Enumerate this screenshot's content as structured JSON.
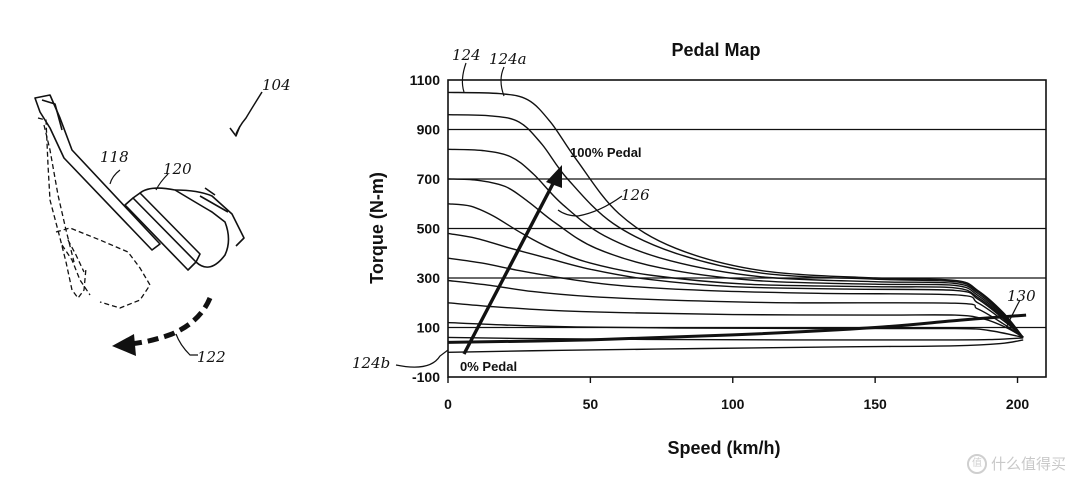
{
  "chart_data": {
    "type": "line",
    "title": "Pedal Map",
    "xlabel": "Speed (km/h)",
    "ylabel": "Torque (N-m)",
    "xlim": [
      0,
      210
    ],
    "ylim": [
      -100,
      1100
    ],
    "xticks": [
      "0",
      "50",
      "100",
      "150",
      "200"
    ],
    "yticks": [
      "1100",
      "900",
      "700",
      "500",
      "300",
      "100",
      "-100"
    ],
    "grid": "horizontal",
    "annotations": [
      "100% Pedal",
      "0% Pedal"
    ],
    "reference_labels": [
      "124",
      "124a",
      "126",
      "130",
      "124b"
    ],
    "series": [
      {
        "x": [
          0,
          18,
          28,
          36,
          45,
          60,
          80,
          110,
          150,
          178,
          186,
          195,
          202
        ],
        "y": [
          1050,
          1045,
          1020,
          930,
          780,
          560,
          420,
          330,
          300,
          290,
          250,
          160,
          60
        ]
      },
      {
        "x": [
          0,
          15,
          25,
          33,
          42,
          58,
          80,
          110,
          150,
          178,
          186,
          195,
          202
        ],
        "y": [
          960,
          955,
          930,
          840,
          700,
          520,
          400,
          320,
          295,
          285,
          245,
          155,
          60
        ]
      },
      {
        "x": [
          0,
          12,
          22,
          30,
          40,
          55,
          78,
          110,
          150,
          178,
          186,
          195,
          202
        ],
        "y": [
          820,
          815,
          790,
          720,
          600,
          470,
          370,
          305,
          285,
          278,
          238,
          150,
          60
        ]
      },
      {
        "x": [
          0,
          10,
          20,
          28,
          38,
          52,
          75,
          108,
          150,
          178,
          186,
          195,
          202
        ],
        "y": [
          700,
          695,
          670,
          610,
          520,
          420,
          340,
          290,
          275,
          270,
          230,
          145,
          60
        ]
      },
      {
        "x": [
          0,
          8,
          16,
          26,
          36,
          50,
          72,
          105,
          150,
          178,
          186,
          195,
          202
        ],
        "y": [
          600,
          590,
          550,
          480,
          420,
          360,
          310,
          275,
          265,
          260,
          222,
          140,
          60
        ]
      },
      {
        "x": [
          0,
          10,
          22,
          35,
          50,
          70,
          100,
          140,
          178,
          186,
          195,
          202
        ],
        "y": [
          480,
          460,
          420,
          380,
          335,
          295,
          265,
          255,
          250,
          215,
          135,
          60
        ]
      },
      {
        "x": [
          0,
          12,
          25,
          40,
          60,
          90,
          130,
          178,
          186,
          195,
          202
        ],
        "y": [
          380,
          360,
          330,
          300,
          270,
          250,
          238,
          232,
          200,
          128,
          60
        ]
      },
      {
        "x": [
          0,
          15,
          30,
          50,
          80,
          120,
          178,
          186,
          195,
          202
        ],
        "y": [
          290,
          270,
          245,
          225,
          210,
          200,
          198,
          175,
          115,
          60
        ]
      },
      {
        "x": [
          0,
          15,
          35,
          60,
          100,
          150,
          178,
          188,
          196,
          202
        ],
        "y": [
          200,
          185,
          170,
          160,
          152,
          150,
          150,
          135,
          100,
          60
        ]
      },
      {
        "x": [
          0,
          20,
          45,
          80,
          130,
          178,
          190,
          202
        ],
        "y": [
          120,
          110,
          102,
          98,
          96,
          96,
          88,
          60
        ]
      },
      {
        "x": [
          0,
          30,
          70,
          120,
          178,
          192,
          202
        ],
        "y": [
          60,
          55,
          52,
          50,
          50,
          52,
          58
        ]
      },
      {
        "x": [
          0,
          40,
          90,
          140,
          178,
          194,
          202
        ],
        "y": [
          0,
          8,
          15,
          22,
          26,
          35,
          50
        ]
      }
    ],
    "emphasized_series": {
      "x": [
        0,
        50,
        100,
        150,
        180,
        203
      ],
      "y": [
        40,
        50,
        70,
        100,
        130,
        150
      ]
    }
  }
}
